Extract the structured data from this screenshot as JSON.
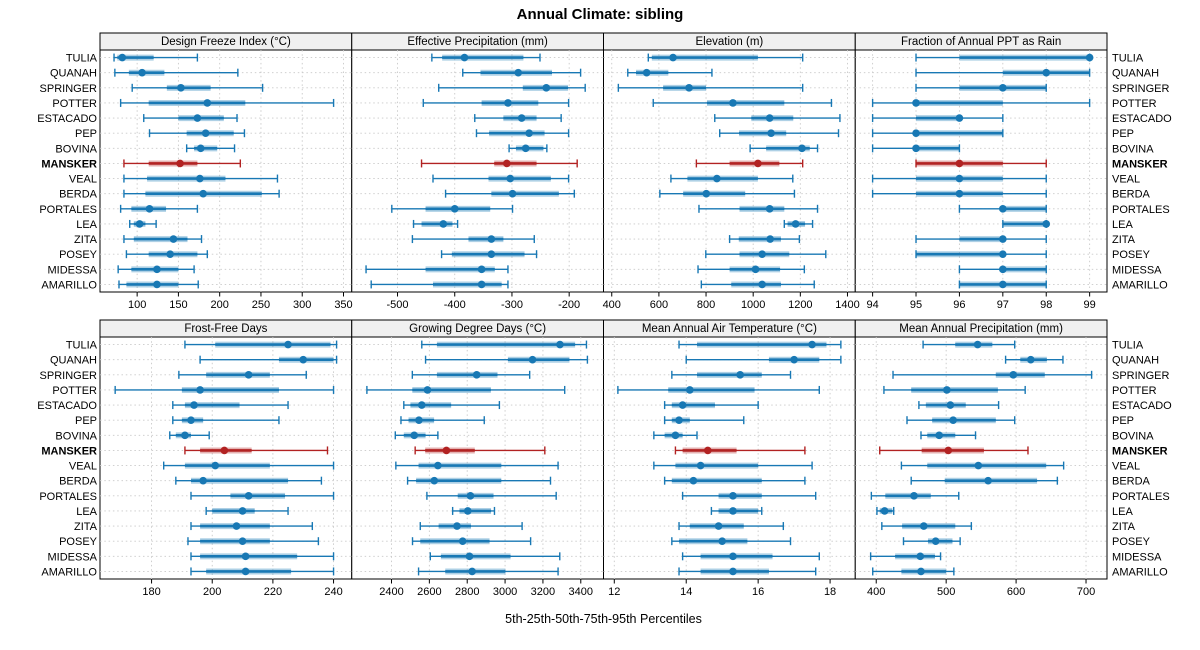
{
  "title": "Annual Climate: sibling",
  "caption": "5th-25th-50th-75th-95th Percentiles",
  "stations": [
    "TULIA",
    "QUANAH",
    "SPRINGER",
    "POTTER",
    "ESTACADO",
    "PEP",
    "BOVINA",
    "MANSKER",
    "VEAL",
    "BERDA",
    "PORTALES",
    "LEA",
    "ZITA",
    "POSEY",
    "MIDESSA",
    "AMARILLO"
  ],
  "highlight_station": "MANSKER",
  "colors": {
    "series_blue": "#1878b4",
    "series_blue_band": "rgba(24,120,180,0.35)",
    "highlight_red": "#b22222",
    "highlight_red_band": "rgba(178,34,34,0.35)",
    "strip_bg": "#f0f0f0",
    "panel_border": "#000000",
    "grid": "#c9c9c9",
    "text": "#000000"
  },
  "chart_data": {
    "type": "percentile-dotplot-trellis",
    "layout": "2 rows x 4 cols, shared station categories, MANSKER highlighted",
    "percentile_labels": [
      "5th",
      "25th",
      "50th",
      "75th",
      "95th"
    ],
    "panels": [
      {
        "title": "Design Freeze Index (°C)",
        "row": 0,
        "col": 0,
        "xlim": [
          55,
          360
        ],
        "ticks": [
          100,
          150,
          200,
          250,
          300,
          350
        ],
        "values": [
          [
            72,
            76,
            82,
            120,
            173
          ],
          [
            73,
            90,
            106,
            133,
            222
          ],
          [
            94,
            136,
            153,
            189,
            252
          ],
          [
            80,
            114,
            185,
            231,
            338
          ],
          [
            108,
            150,
            173,
            205,
            221
          ],
          [
            115,
            160,
            183,
            217,
            230
          ],
          [
            160,
            169,
            177,
            197,
            218
          ],
          [
            84,
            114,
            152,
            173,
            225
          ],
          [
            84,
            112,
            176,
            207,
            270
          ],
          [
            84,
            110,
            180,
            251,
            272
          ],
          [
            80,
            93,
            115,
            135,
            173
          ],
          [
            91,
            96,
            103,
            110,
            123
          ],
          [
            84,
            96,
            144,
            161,
            178
          ],
          [
            87,
            114,
            140,
            173,
            185
          ],
          [
            77,
            93,
            124,
            150,
            169
          ],
          [
            78,
            87,
            124,
            150,
            174
          ]
        ]
      },
      {
        "title": "Effective Precipitation (mm)",
        "row": 0,
        "col": 1,
        "xlim": [
          -580,
          -140
        ],
        "ticks": [
          -500,
          -400,
          -300,
          -200
        ],
        "values": [
          [
            -440,
            -422,
            -383,
            -280,
            -251
          ],
          [
            -386,
            -355,
            -289,
            -230,
            -180
          ],
          [
            -428,
            -281,
            -240,
            -202,
            -172
          ],
          [
            -455,
            -353,
            -307,
            -254,
            -201
          ],
          [
            -365,
            -315,
            -283,
            -257,
            -214
          ],
          [
            -362,
            -340,
            -270,
            -243,
            -201
          ],
          [
            -305,
            -293,
            -276,
            -245,
            -239
          ],
          [
            -458,
            -331,
            -309,
            -257,
            -186
          ],
          [
            -438,
            -341,
            -303,
            -232,
            -201
          ],
          [
            -416,
            -336,
            -299,
            -218,
            -191
          ],
          [
            -510,
            -451,
            -400,
            -338,
            -299
          ],
          [
            -472,
            -458,
            -420,
            -404,
            -395
          ],
          [
            -474,
            -376,
            -336,
            -315,
            -261
          ],
          [
            -423,
            -405,
            -336,
            -278,
            -257
          ],
          [
            -555,
            -451,
            -353,
            -330,
            -307
          ],
          [
            -546,
            -438,
            -353,
            -318,
            -307
          ]
        ]
      },
      {
        "title": "Elevation (m)",
        "row": 0,
        "col": 2,
        "xlim": [
          365,
          1433
        ],
        "ticks": [
          400,
          600,
          800,
          1000,
          1200,
          1400
        ],
        "values": [
          [
            555,
            570,
            660,
            1020,
            1210
          ],
          [
            468,
            503,
            548,
            640,
            825
          ],
          [
            428,
            618,
            728,
            800,
            1210
          ],
          [
            576,
            804,
            914,
            1132,
            1332
          ],
          [
            837,
            992,
            1070,
            1170,
            1368
          ],
          [
            858,
            940,
            1076,
            1140,
            1362
          ],
          [
            987,
            1055,
            1207,
            1240,
            1273
          ],
          [
            759,
            900,
            1020,
            1111,
            1210
          ],
          [
            651,
            721,
            846,
            1020,
            1168
          ],
          [
            604,
            703,
            801,
            966,
            1175
          ],
          [
            770,
            942,
            1070,
            1132,
            1273
          ],
          [
            1132,
            1146,
            1180,
            1220,
            1252
          ],
          [
            900,
            939,
            1072,
            1118,
            1196
          ],
          [
            799,
            942,
            1038,
            1153,
            1308
          ],
          [
            766,
            900,
            1010,
            1114,
            1217
          ],
          [
            780,
            907,
            1038,
            1118,
            1259
          ]
        ]
      },
      {
        "title": "Fraction of Annual PPT as Rain",
        "row": 0,
        "col": 3,
        "xlim": [
          93.6,
          99.4
        ],
        "ticks": [
          94,
          95,
          96,
          97,
          98,
          99
        ],
        "values": [
          [
            95,
            96,
            99,
            99,
            99
          ],
          [
            95,
            97,
            98,
            99,
            99
          ],
          [
            95,
            96,
            97,
            98,
            98
          ],
          [
            94,
            95,
            95,
            97,
            99
          ],
          [
            94,
            95,
            96,
            96,
            97
          ],
          [
            94,
            95,
            95,
            97,
            97
          ],
          [
            94,
            95,
            95,
            96,
            96
          ],
          [
            95,
            95,
            96,
            97,
            98
          ],
          [
            94,
            95,
            96,
            97,
            98
          ],
          [
            94,
            95,
            96,
            97,
            98
          ],
          [
            96,
            97,
            97,
            98,
            98
          ],
          [
            97,
            97,
            98,
            98,
            98
          ],
          [
            95,
            96,
            97,
            97,
            98
          ],
          [
            95,
            95,
            97,
            97,
            98
          ],
          [
            96,
            97,
            97,
            98,
            98
          ],
          [
            96,
            96,
            97,
            98,
            98
          ]
        ]
      },
      {
        "title": "Frost-Free Days",
        "row": 1,
        "col": 0,
        "xlim": [
          163,
          246
        ],
        "ticks": [
          180,
          200,
          220,
          240
        ],
        "values": [
          [
            191,
            201,
            225,
            239,
            241
          ],
          [
            196,
            222,
            230,
            240,
            241
          ],
          [
            189,
            198,
            212,
            219,
            231
          ],
          [
            168,
            190,
            196,
            222,
            240
          ],
          [
            187,
            191,
            194,
            209,
            225
          ],
          [
            187,
            190,
            193,
            197,
            222
          ],
          [
            186,
            188,
            191,
            193,
            199
          ],
          [
            191,
            196,
            204,
            213,
            238
          ],
          [
            184,
            191,
            201,
            219,
            240
          ],
          [
            188,
            193,
            197,
            225,
            236
          ],
          [
            193,
            206,
            212,
            224,
            240
          ],
          [
            198,
            200,
            210,
            214,
            225
          ],
          [
            193,
            196,
            208,
            219,
            233
          ],
          [
            192,
            196,
            210,
            219,
            235
          ],
          [
            193,
            196,
            211,
            228,
            240
          ],
          [
            193,
            198,
            211,
            226,
            240
          ]
        ]
      },
      {
        "title": "Growing Degree Days (°C)",
        "row": 1,
        "col": 1,
        "xlim": [
          2190,
          3520
        ],
        "ticks": [
          2400,
          2600,
          2800,
          3000,
          3200,
          3400
        ],
        "values": [
          [
            2560,
            2640,
            3290,
            3370,
            3430
          ],
          [
            2580,
            3015,
            3145,
            3340,
            3435
          ],
          [
            2510,
            2640,
            2850,
            2960,
            3130
          ],
          [
            2270,
            2510,
            2590,
            2925,
            3315
          ],
          [
            2465,
            2500,
            2560,
            2715,
            2970
          ],
          [
            2450,
            2490,
            2545,
            2625,
            2890
          ],
          [
            2420,
            2465,
            2520,
            2580,
            2645
          ],
          [
            2525,
            2578,
            2690,
            2840,
            3210
          ],
          [
            2423,
            2543,
            2645,
            2980,
            3280
          ],
          [
            2485,
            2530,
            2626,
            2980,
            3240
          ],
          [
            2587,
            2750,
            2817,
            2939,
            3270
          ],
          [
            2723,
            2759,
            2803,
            2926,
            2944
          ],
          [
            2552,
            2649,
            2746,
            2820,
            3090
          ],
          [
            2511,
            2552,
            2776,
            2918,
            3135
          ],
          [
            2605,
            2661,
            2812,
            3029,
            3289
          ],
          [
            2543,
            2684,
            2826,
            3002,
            3280
          ]
        ]
      },
      {
        "title": "Mean Annual Air Temperature (°C)",
        "row": 1,
        "col": 2,
        "xlim": [
          11.7,
          18.7
        ],
        "ticks": [
          12,
          14,
          16,
          18
        ],
        "values": [
          [
            13.8,
            14.3,
            17.5,
            17.9,
            18.3
          ],
          [
            14.0,
            16.3,
            17.0,
            17.7,
            18.3
          ],
          [
            13.6,
            14.3,
            15.5,
            16.1,
            16.9
          ],
          [
            12.1,
            13.5,
            14.1,
            15.9,
            17.7
          ],
          [
            13.4,
            13.6,
            13.9,
            14.8,
            16.0
          ],
          [
            13.4,
            13.6,
            13.8,
            14.1,
            15.6
          ],
          [
            13.1,
            13.4,
            13.7,
            13.9,
            14.3
          ],
          [
            13.7,
            13.9,
            14.6,
            15.4,
            17.3
          ],
          [
            13.1,
            13.7,
            14.4,
            16.0,
            17.5
          ],
          [
            13.4,
            13.6,
            14.2,
            16.1,
            17.3
          ],
          [
            13.9,
            14.9,
            15.3,
            16.1,
            17.6
          ],
          [
            14.7,
            14.9,
            15.3,
            16.0,
            16.1
          ],
          [
            13.8,
            14.1,
            14.9,
            15.6,
            16.7
          ],
          [
            13.6,
            13.8,
            15.0,
            15.7,
            16.9
          ],
          [
            13.9,
            14.4,
            15.3,
            16.4,
            17.7
          ],
          [
            13.8,
            14.4,
            15.3,
            16.3,
            17.6
          ]
        ]
      },
      {
        "title": "Mean Annual Precipitation (mm)",
        "row": 1,
        "col": 3,
        "xlim": [
          370,
          730
        ],
        "ticks": [
          400,
          500,
          600,
          700
        ],
        "values": [
          [
            467,
            513,
            545,
            566,
            598
          ],
          [
            585,
            606,
            621,
            644,
            667
          ],
          [
            424,
            571,
            596,
            641,
            708
          ],
          [
            411,
            450,
            501,
            574,
            613
          ],
          [
            461,
            471,
            506,
            528,
            575
          ],
          [
            444,
            480,
            510,
            571,
            598
          ],
          [
            464,
            473,
            490,
            513,
            542
          ],
          [
            405,
            465,
            503,
            554,
            617
          ],
          [
            436,
            473,
            546,
            643,
            668
          ],
          [
            450,
            498,
            560,
            630,
            659
          ],
          [
            393,
            413,
            454,
            478,
            518
          ],
          [
            401,
            405,
            412,
            423,
            425
          ],
          [
            408,
            437,
            468,
            513,
            536
          ],
          [
            439,
            474,
            485,
            509,
            520
          ],
          [
            392,
            427,
            463,
            484,
            492
          ],
          [
            395,
            436,
            464,
            500,
            511
          ]
        ]
      }
    ]
  }
}
